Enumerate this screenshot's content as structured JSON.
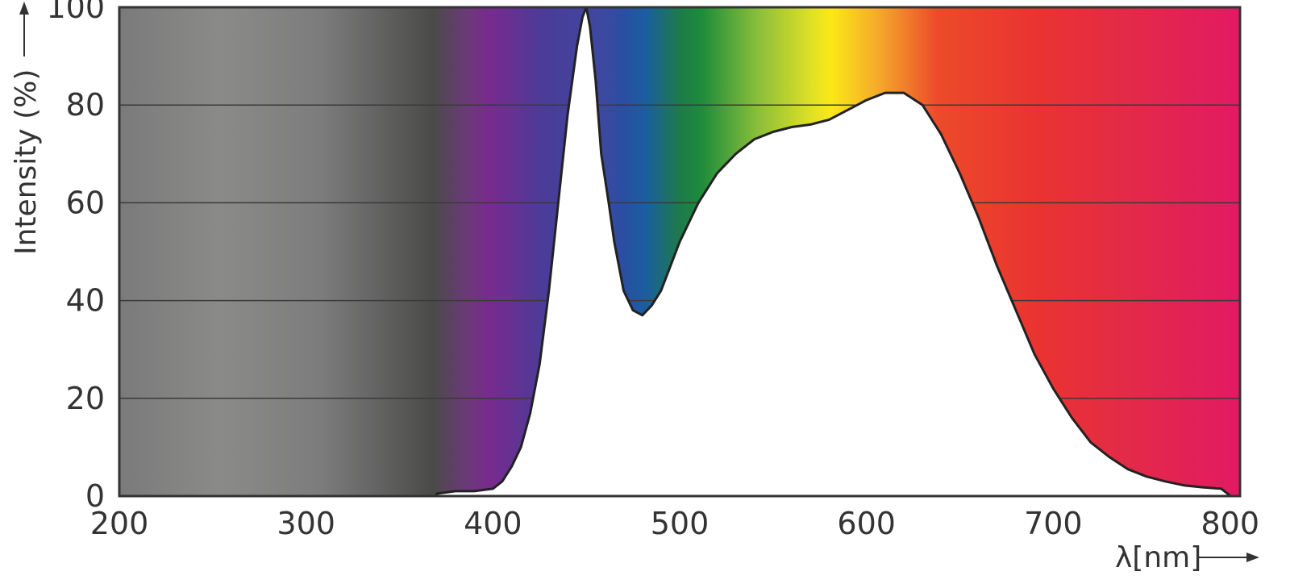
{
  "chart_data": {
    "type": "area",
    "title": "",
    "xlabel": "λ[nm]",
    "ylabel": "Intensity (%)",
    "xlim": [
      200,
      800
    ],
    "ylim": [
      0,
      100
    ],
    "x_ticks": [
      200,
      300,
      400,
      500,
      600,
      700,
      800
    ],
    "y_ticks": [
      0,
      20,
      40,
      60,
      80,
      100
    ],
    "grid": "horizontal",
    "legend": "none",
    "background": "visible spectrum color band (ultraviolet gray, violet, blue, green, yellow, orange, red)",
    "series": [
      {
        "x": [
          370,
          380,
          390,
          400,
          405,
          410,
          415,
          420,
          425,
          430,
          435,
          440,
          445,
          448,
          450,
          452,
          455,
          458,
          462,
          465,
          470,
          475,
          480,
          485,
          490,
          495,
          500,
          510,
          520,
          530,
          540,
          550,
          560,
          570,
          580,
          590,
          600,
          610,
          620,
          630,
          640,
          650,
          660,
          670,
          680,
          690,
          700,
          710,
          720,
          730,
          740,
          750,
          760,
          770,
          780,
          790,
          795
        ],
        "y": [
          0.5,
          1,
          1,
          1.5,
          3,
          6,
          10,
          17,
          27,
          42,
          60,
          78,
          92,
          98,
          100,
          96,
          85,
          70,
          60,
          52,
          42,
          38,
          37,
          39,
          42,
          47,
          52,
          60,
          66,
          70,
          73,
          74.5,
          75.5,
          76,
          77,
          79,
          81,
          82.5,
          82.5,
          80,
          74,
          66,
          57,
          47,
          38,
          29,
          22,
          16,
          11,
          8,
          5.5,
          4,
          3,
          2.2,
          1.8,
          1.5,
          0
        ]
      }
    ]
  }
}
